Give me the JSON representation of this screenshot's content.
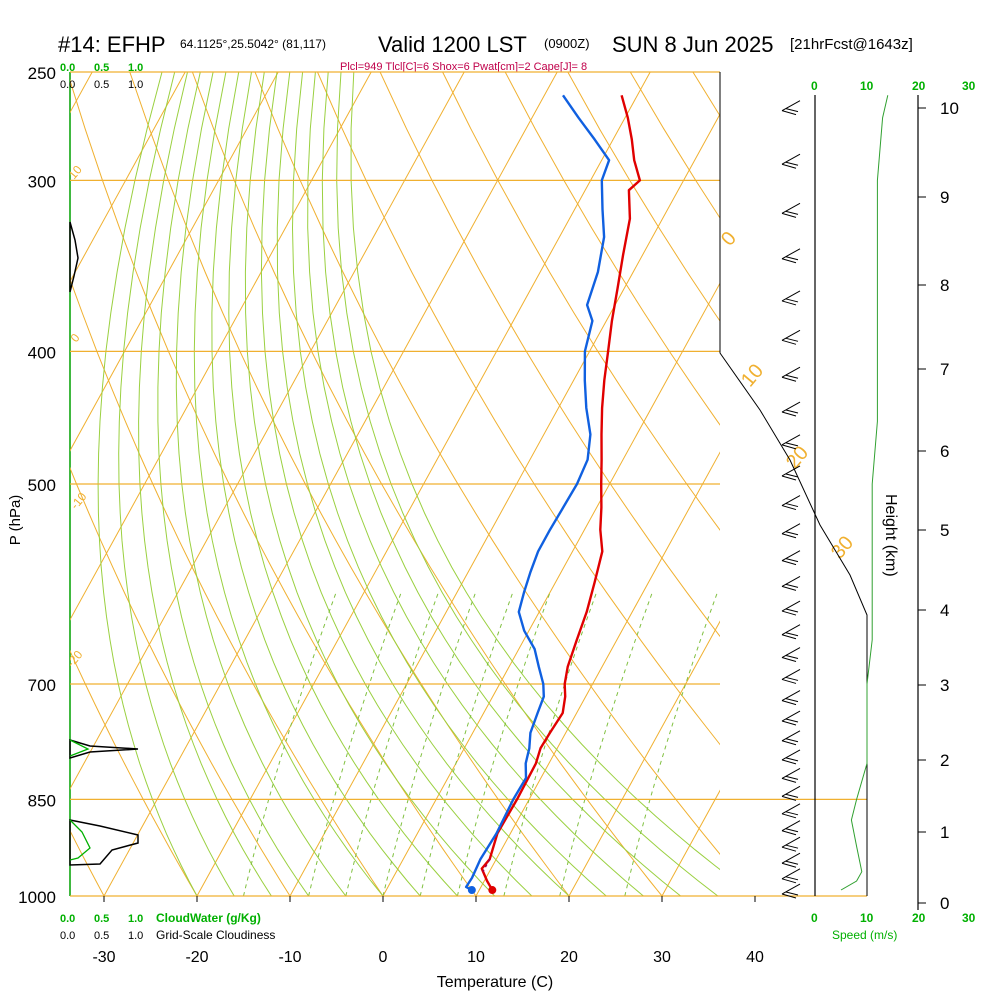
{
  "header": {
    "station": "#14: EFHP",
    "coords": "64.1125°,25.5042° (81,117)",
    "valid": "Valid 1200 LST",
    "utc": "(0900Z)",
    "date": "SUN 8 Jun 2025",
    "forecast": "[21hrFcst@1643z]",
    "params": "Plcl=949 Tlcl[C]=6 Shox=6 Pwat[cm]=2 Cape[J]= 8"
  },
  "chart_data": {
    "type": "line",
    "title": "#14: EFHP",
    "xlabel": "Temperature (C)",
    "ylabel": "P (hPa)",
    "y2label": "Height (km)",
    "x_ticks": [
      -30,
      -20,
      -10,
      0,
      10,
      20,
      30,
      40
    ],
    "p_ticks": [
      250,
      300,
      400,
      500,
      700,
      850,
      1000
    ],
    "height_ticks": [
      0,
      1,
      2,
      3,
      4,
      5,
      6,
      7,
      8,
      9,
      10
    ],
    "isotherm_labels": [
      "10",
      "0",
      "-10",
      "-20",
      "0",
      "10",
      "20",
      "30"
    ],
    "mixing_ratio_labels": [
      "1",
      "2",
      "3",
      "5",
      "8",
      "12",
      "20"
    ],
    "cloud_scale": {
      "top_green": [
        "0.0",
        "0.5",
        "1.0"
      ],
      "top_black": [
        "0.0",
        "0.5",
        "1.0"
      ],
      "bottom_green": [
        "0.0",
        "0.5",
        "1.0"
      ],
      "bottom_black": [
        "0.0",
        "0.5",
        "1.0"
      ],
      "cloudwater_label": "CloudWater (g/Kg)",
      "cloudiness_label": "Grid-Scale Cloudiness"
    },
    "speed_scale": {
      "ticks": [
        "0",
        "10",
        "20",
        "30"
      ],
      "label": "Speed (m/s)"
    },
    "series": [
      {
        "name": "Temperature",
        "color": "#e00000",
        "points": [
          [
            11.4,
            990
          ],
          [
            10.3,
            975
          ],
          [
            9.0,
            955
          ],
          [
            9.3,
            940
          ],
          [
            8.6,
            900
          ],
          [
            8.7,
            850
          ],
          [
            8.6,
            800
          ],
          [
            8.2,
            780
          ],
          [
            8.3,
            760
          ],
          [
            8.5,
            735
          ],
          [
            7.8,
            715
          ],
          [
            7.0,
            700
          ],
          [
            6.3,
            680
          ],
          [
            5.7,
            650
          ],
          [
            5.1,
            620
          ],
          [
            4.2,
            590
          ],
          [
            3.2,
            560
          ],
          [
            1.7,
            540
          ],
          [
            0.5,
            520
          ],
          [
            -0.9,
            500
          ],
          [
            -2.3,
            480
          ],
          [
            -3.8,
            460
          ],
          [
            -5.3,
            440
          ],
          [
            -6.7,
            420
          ],
          [
            -8.0,
            400
          ],
          [
            -9.4,
            380
          ],
          [
            -10.7,
            360
          ],
          [
            -12.1,
            340
          ],
          [
            -13.5,
            320
          ],
          [
            -15.3,
            305
          ],
          [
            -14.7,
            300
          ],
          [
            -16.5,
            290
          ],
          [
            -18.0,
            280
          ],
          [
            -19.7,
            270
          ],
          [
            -21.7,
            260
          ]
        ]
      },
      {
        "name": "Dewpoint",
        "color": "#1060e0",
        "points": [
          [
            9.2,
            990
          ],
          [
            8.4,
            985
          ],
          [
            8.5,
            970
          ],
          [
            8.3,
            940
          ],
          [
            8.5,
            900
          ],
          [
            8.3,
            850
          ],
          [
            8.4,
            820
          ],
          [
            7.5,
            800
          ],
          [
            7.0,
            780
          ],
          [
            6.2,
            760
          ],
          [
            5.8,
            735
          ],
          [
            5.5,
            715
          ],
          [
            4.7,
            700
          ],
          [
            3.2,
            680
          ],
          [
            1.7,
            660
          ],
          [
            -0.5,
            640
          ],
          [
            -2.2,
            620
          ],
          [
            -2.8,
            600
          ],
          [
            -3.3,
            580
          ],
          [
            -3.7,
            560
          ],
          [
            -3.7,
            540
          ],
          [
            -3.6,
            520
          ],
          [
            -3.5,
            500
          ],
          [
            -3.8,
            480
          ],
          [
            -5.0,
            460
          ],
          [
            -7.0,
            440
          ],
          [
            -8.8,
            420
          ],
          [
            -10.5,
            400
          ],
          [
            -11.5,
            380
          ],
          [
            -13.0,
            370
          ],
          [
            -13.8,
            350
          ],
          [
            -15.2,
            330
          ],
          [
            -17.0,
            315
          ],
          [
            -18.8,
            300
          ],
          [
            -19.2,
            290
          ],
          [
            -22.0,
            280
          ],
          [
            -25.0,
            270
          ],
          [
            -28.0,
            260
          ]
        ]
      }
    ],
    "lifted_parcel": [
      [
        9.3,
        940
      ],
      [
        9.3,
        960
      ]
    ],
    "wind_barbs_count": 30,
    "speed_profile_points": [
      [
        5,
        990
      ],
      [
        8,
        975
      ],
      [
        9,
        960
      ],
      [
        8,
        920
      ],
      [
        7,
        880
      ],
      [
        8,
        850
      ],
      [
        10,
        800
      ],
      [
        10,
        750
      ],
      [
        10,
        700
      ],
      [
        11,
        650
      ],
      [
        11,
        600
      ],
      [
        11,
        550
      ],
      [
        11,
        500
      ],
      [
        12,
        450
      ],
      [
        12,
        400
      ],
      [
        12,
        350
      ],
      [
        12,
        300
      ],
      [
        13,
        270
      ],
      [
        14,
        260
      ]
    ]
  }
}
